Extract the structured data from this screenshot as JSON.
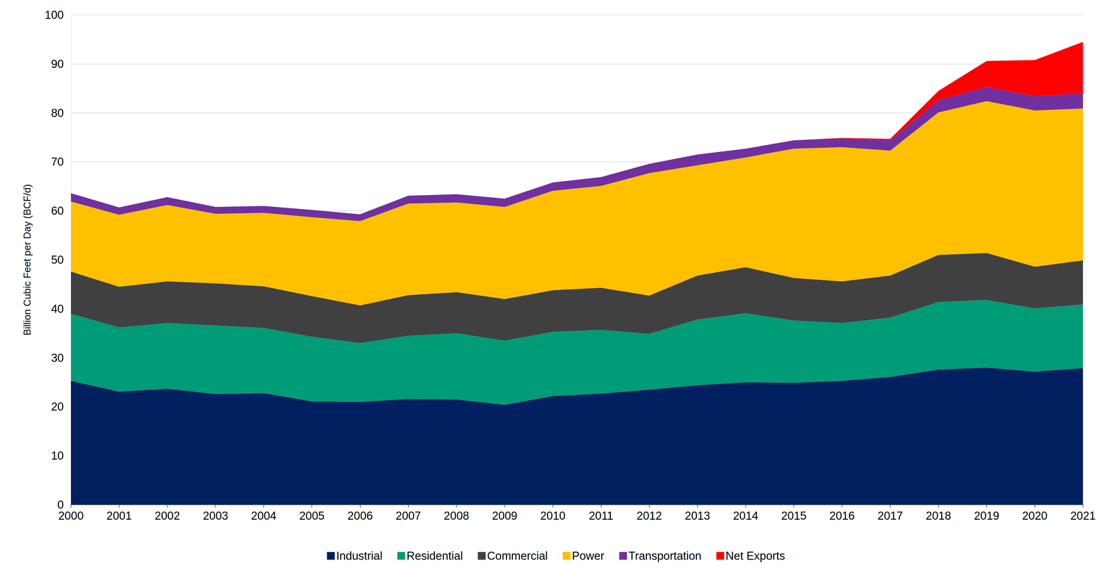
{
  "chart_data": {
    "type": "area",
    "stacked": true,
    "grid": true,
    "legend": "bottom",
    "y_label": "Billion Cubic Feet per Day (BCF/d)",
    "categories": [
      "2000",
      "2001",
      "2002",
      "2003",
      "2004",
      "2005",
      "2006",
      "2007",
      "2008",
      "2009",
      "2010",
      "2011",
      "2012",
      "2013",
      "2014",
      "2015",
      "2016",
      "2017",
      "2018",
      "2019",
      "2020",
      "2021"
    ],
    "ylim": [
      0,
      100
    ],
    "yticks": [
      0,
      10,
      20,
      30,
      40,
      50,
      60,
      70,
      80,
      90,
      100
    ],
    "series": [
      {
        "name": "Industrial",
        "color": "#002060",
        "values": [
          25.3,
          23.1,
          23.7,
          22.6,
          22.8,
          21.1,
          21.0,
          21.6,
          21.5,
          20.4,
          22.2,
          22.7,
          23.5,
          24.4,
          25.0,
          24.9,
          25.3,
          26.1,
          27.6,
          28.0,
          27.2,
          27.9
        ]
      },
      {
        "name": "Residential",
        "color": "#009B77",
        "values": [
          13.7,
          13.1,
          13.4,
          14.0,
          13.3,
          13.2,
          12.0,
          12.9,
          13.5,
          13.1,
          13.1,
          13.0,
          11.4,
          13.4,
          14.1,
          12.7,
          11.8,
          12.1,
          13.8,
          13.8,
          12.9,
          13.0
        ]
      },
      {
        "name": "Commercial",
        "color": "#404040",
        "values": [
          8.6,
          8.3,
          8.5,
          8.6,
          8.5,
          8.3,
          7.7,
          8.3,
          8.4,
          8.5,
          8.5,
          8.6,
          7.8,
          9.0,
          9.4,
          8.7,
          8.5,
          8.6,
          9.6,
          9.6,
          8.5,
          9.0
        ]
      },
      {
        "name": "Power",
        "color": "#FFC000",
        "values": [
          14.3,
          14.7,
          15.6,
          14.2,
          15.0,
          16.1,
          17.2,
          18.7,
          18.3,
          18.8,
          20.3,
          20.8,
          25.0,
          22.5,
          22.4,
          26.4,
          27.4,
          25.5,
          29.1,
          31.0,
          31.9,
          31.0
        ]
      },
      {
        "name": "Transportation",
        "color": "#7030A0",
        "values": [
          1.7,
          1.5,
          1.6,
          1.4,
          1.4,
          1.5,
          1.4,
          1.6,
          1.7,
          1.7,
          1.7,
          1.8,
          1.9,
          2.2,
          1.8,
          1.7,
          1.8,
          2.1,
          2.5,
          2.9,
          2.9,
          3.1
        ]
      },
      {
        "name": "Net Exports",
        "color": "#FF0000",
        "values": [
          0,
          0,
          0,
          0,
          0,
          0,
          0,
          0,
          0,
          0,
          0,
          0,
          0,
          0,
          0,
          0,
          0.1,
          0.3,
          1.9,
          5.3,
          7.4,
          10.5
        ]
      }
    ]
  }
}
